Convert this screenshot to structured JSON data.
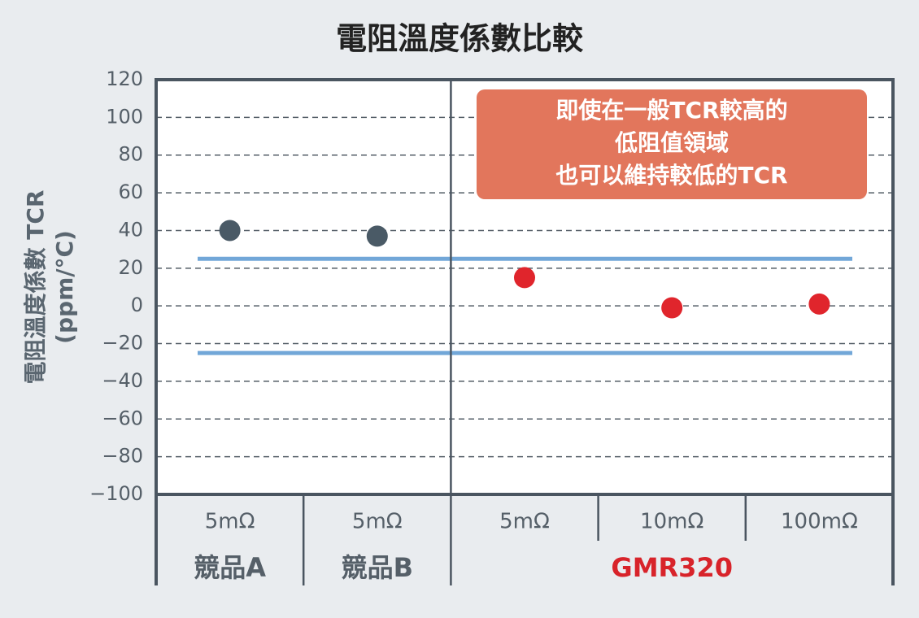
{
  "chart_data": {
    "type": "scatter",
    "title": "電阻溫度係數比較",
    "y_label": [
      "電阻溫度係數 TCR",
      "(ppm/°C)"
    ],
    "categories": [
      "5mΩ",
      "5mΩ",
      "5mΩ",
      "10mΩ",
      "100mΩ"
    ],
    "groups": [
      {
        "name": "競品A",
        "count": 1,
        "color": "#555f68"
      },
      {
        "name": "競品B",
        "count": 1,
        "color": "#555f68"
      },
      {
        "name": "GMR320",
        "count": 3,
        "color": "#d8232a"
      }
    ],
    "values": [
      40,
      37,
      15,
      -1,
      1
    ],
    "colors": [
      "#4a5a66",
      "#4a5a66",
      "#e0252c",
      "#e0252c",
      "#e0252c"
    ],
    "reference_lines": [
      25,
      -25
    ],
    "reference_color": "#72a7d8",
    "ylim": [
      -100,
      120
    ],
    "yticks": [
      {
        "value": -100,
        "label": "−100"
      },
      {
        "value": -80,
        "label": "−80"
      },
      {
        "value": -60,
        "label": "−60"
      },
      {
        "value": -40,
        "label": "−40"
      },
      {
        "value": -20,
        "label": "−20"
      },
      0,
      20,
      40,
      60,
      80,
      100,
      120
    ],
    "grid": true,
    "annotation": {
      "lines": [
        "即使在一般TCR較高的",
        "低阻值領域",
        "也可以維持較低的TCR"
      ],
      "color": "#e2765c"
    }
  }
}
